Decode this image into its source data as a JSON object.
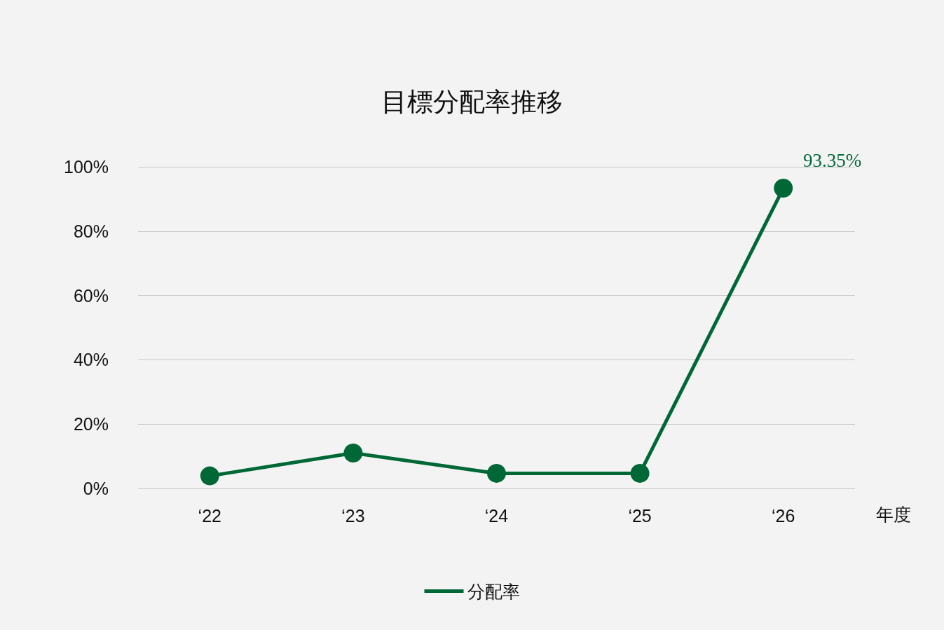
{
  "chart_data": {
    "type": "line",
    "title": "目標分配率推移",
    "xlabel": "年度",
    "categories": [
      "‘22",
      "‘23",
      "‘24",
      "‘25",
      "‘26"
    ],
    "series": [
      {
        "name": "分配率",
        "color": "#006837",
        "values": [
          3.9,
          11.0,
          4.7,
          4.7,
          93.35
        ],
        "value_labels": [
          null,
          null,
          null,
          null,
          "93.35%"
        ]
      }
    ],
    "ylim": [
      0,
      100
    ],
    "yticks": [
      {
        "value": 0,
        "label": "0%"
      },
      {
        "value": 20,
        "label": "20%"
      },
      {
        "value": 40,
        "label": "40%"
      },
      {
        "value": 60,
        "label": "60%"
      },
      {
        "value": 80,
        "label": "80%"
      },
      {
        "value": 100,
        "label": "100%"
      }
    ],
    "grid": "y",
    "legend": "bottom",
    "marker": "circle",
    "line_style": "solid"
  }
}
